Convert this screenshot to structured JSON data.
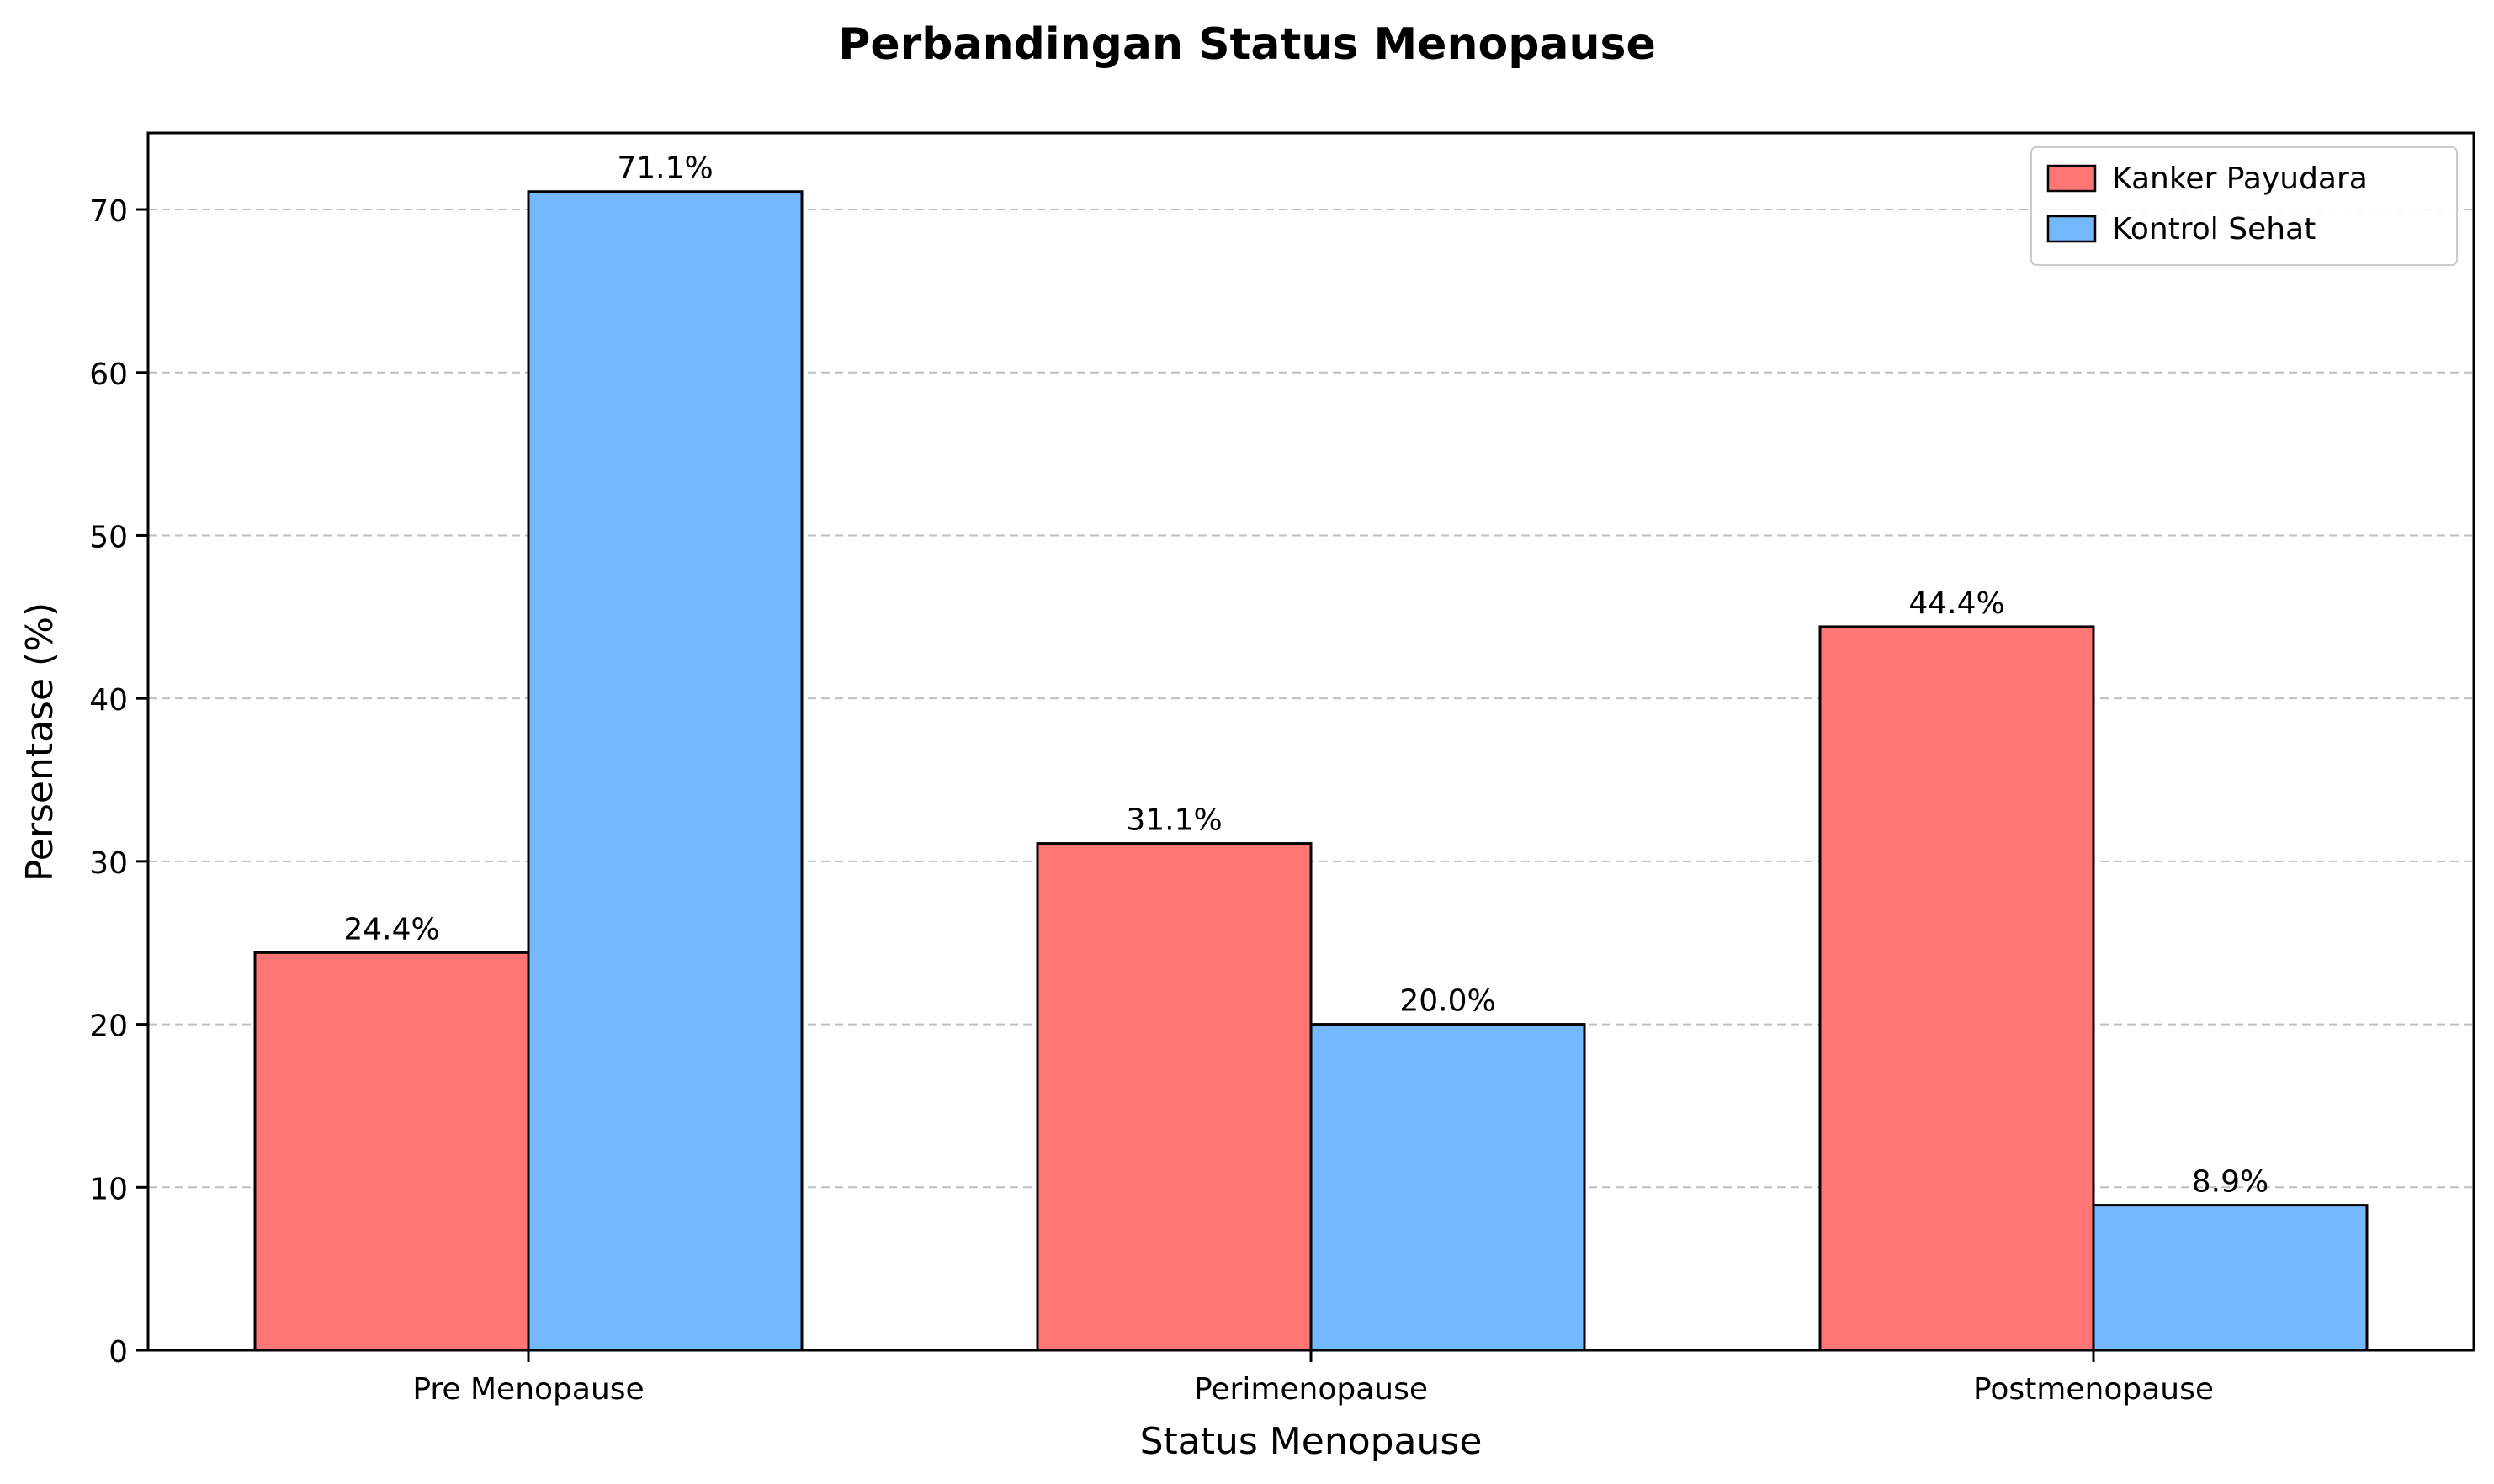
{
  "chart_data": {
    "type": "bar",
    "title": "Perbandingan Status Menopause",
    "xlabel": "Status Menopause",
    "ylabel": "Persentase (%)",
    "categories": [
      "Pre Menopause",
      "Perimenopause",
      "Postmenopause"
    ],
    "series": [
      {
        "name": "Kanker Payudara",
        "values": [
          24.4,
          31.1,
          44.4
        ],
        "labels": [
          "24.4%",
          "31.1%",
          "44.4%"
        ],
        "color": "#ff7675"
      },
      {
        "name": "Kontrol Sehat",
        "values": [
          71.1,
          20.0,
          8.9
        ],
        "labels": [
          "71.1%",
          "20.0%",
          "8.9%"
        ],
        "color": "#74b9ff"
      }
    ],
    "ylim": [
      0,
      74.7
    ],
    "yticks": [
      0,
      10,
      20,
      30,
      40,
      50,
      60,
      70
    ],
    "grid": "y dashed",
    "legend": "top-right"
  }
}
